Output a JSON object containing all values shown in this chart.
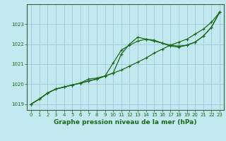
{
  "title": "Graphe pression niveau de la mer (hPa)",
  "background_color": "#c2e8f0",
  "grid_color": "#a0c8d8",
  "line_color": "#1a6b1a",
  "xlim": [
    -0.5,
    23.5
  ],
  "ylim": [
    1018.7,
    1024.0
  ],
  "yticks": [
    1019,
    1020,
    1021,
    1022,
    1023
  ],
  "xticks": [
    0,
    1,
    2,
    3,
    4,
    5,
    6,
    7,
    8,
    9,
    10,
    11,
    12,
    13,
    14,
    15,
    16,
    17,
    18,
    19,
    20,
    21,
    22,
    23
  ],
  "series1": {
    "x": [
      0,
      1,
      2,
      3,
      4,
      5,
      6,
      7,
      8,
      9,
      10,
      11,
      12,
      13,
      14,
      15,
      16,
      17,
      18,
      19,
      20,
      21,
      22,
      23
    ],
    "y": [
      1019.0,
      1019.25,
      1019.55,
      1019.75,
      1019.85,
      1019.95,
      1020.05,
      1020.15,
      1020.25,
      1020.4,
      1020.55,
      1020.7,
      1020.9,
      1021.1,
      1021.3,
      1021.55,
      1021.75,
      1021.95,
      1022.1,
      1022.25,
      1022.5,
      1022.75,
      1023.1,
      1023.6
    ]
  },
  "series2": {
    "x": [
      0,
      1,
      2,
      3,
      4,
      5,
      6,
      7,
      8,
      9,
      10,
      11,
      12,
      13,
      14,
      15,
      16,
      17,
      18,
      19,
      20,
      21,
      22,
      23
    ],
    "y": [
      1019.0,
      1019.25,
      1019.55,
      1019.75,
      1019.85,
      1019.95,
      1020.05,
      1020.15,
      1020.25,
      1020.4,
      1021.05,
      1021.7,
      1021.95,
      1022.15,
      1022.25,
      1022.2,
      1022.05,
      1021.95,
      1021.9,
      1021.95,
      1022.1,
      1022.4,
      1022.85,
      1023.6
    ]
  },
  "series3": {
    "x": [
      0,
      1,
      2,
      3,
      4,
      5,
      6,
      7,
      8,
      9,
      10,
      11,
      12,
      13,
      14,
      15,
      16,
      17,
      18,
      19,
      20,
      21,
      22,
      23
    ],
    "y": [
      1019.0,
      1019.25,
      1019.55,
      1019.75,
      1019.85,
      1019.95,
      1020.05,
      1020.25,
      1020.3,
      1020.4,
      1020.55,
      1021.5,
      1022.0,
      1022.35,
      1022.25,
      1022.15,
      1022.05,
      1021.9,
      1021.85,
      1021.95,
      1022.1,
      1022.4,
      1022.85,
      1023.6
    ]
  }
}
